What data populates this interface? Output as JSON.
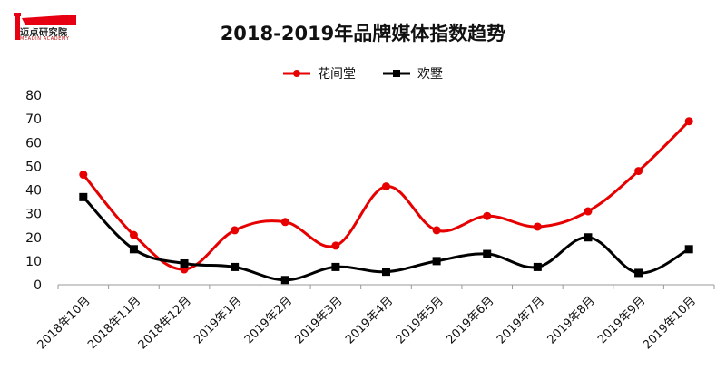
{
  "logo": {
    "name": "迈点研究院",
    "sub": "MEADIN ACADEMY"
  },
  "colors": {
    "series1": "#e60000",
    "series2": "#000000",
    "axis": "#999999",
    "logo_red": "#e60012"
  },
  "chart_data": {
    "type": "line",
    "title": "2018-2019年品牌媒体指数趋势",
    "xlabel": "",
    "ylabel": "",
    "ylim": [
      0,
      80
    ],
    "yticks": [
      0,
      10,
      20,
      30,
      40,
      50,
      60,
      70,
      80
    ],
    "grid": false,
    "legend_position": "top-center",
    "categories": [
      "2018年10月",
      "2018年11月",
      "2018年12月",
      "2019年1月",
      "2019年2月",
      "2019年3月",
      "2019年4月",
      "2019年5月",
      "2019年6月",
      "2019年7月",
      "2019年8月",
      "2019年9月",
      "2019年10月"
    ],
    "series": [
      {
        "name": "花间堂",
        "color": "#e60000",
        "marker": "circle",
        "values": [
          46.5,
          21,
          6.5,
          23,
          26.5,
          16.5,
          41.5,
          23,
          29,
          24.5,
          31,
          48,
          69
        ]
      },
      {
        "name": "欢墅",
        "color": "#000000",
        "marker": "square",
        "values": [
          37,
          15,
          9,
          7.5,
          2,
          7.5,
          5.5,
          10,
          13,
          7.5,
          20,
          5,
          15
        ]
      }
    ]
  }
}
